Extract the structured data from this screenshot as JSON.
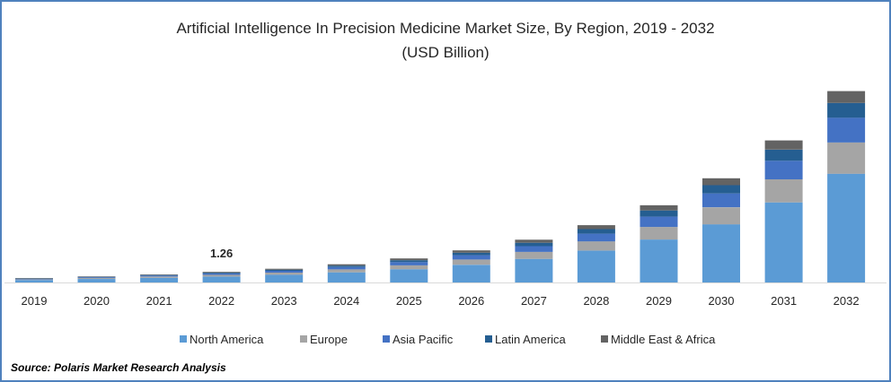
{
  "chart_data": {
    "type": "bar",
    "stacked": true,
    "title": "Artificial Intelligence In Precision Medicine Market Size, By Region, 2019 - 2032",
    "subtitle": "(USD Billion)",
    "categories": [
      "2019",
      "2020",
      "2021",
      "2022",
      "2023",
      "2024",
      "2025",
      "2026",
      "2027",
      "2028",
      "2029",
      "2030",
      "2031",
      "2032"
    ],
    "series": [
      {
        "name": "North America",
        "color": "#5b9bd5",
        "values": [
          0.3,
          0.42,
          0.55,
          0.7,
          0.91,
          1.2,
          1.57,
          2.1,
          2.8,
          3.78,
          5.1,
          6.9,
          9.5,
          12.9
        ]
      },
      {
        "name": "Europe",
        "color": "#a5a5a5",
        "values": [
          0.08,
          0.11,
          0.15,
          0.2,
          0.26,
          0.35,
          0.47,
          0.62,
          0.83,
          1.1,
          1.49,
          2.02,
          2.74,
          3.7
        ]
      },
      {
        "name": "Asia Pacific",
        "color": "#4472c4",
        "values": [
          0.06,
          0.09,
          0.12,
          0.16,
          0.21,
          0.28,
          0.38,
          0.51,
          0.68,
          0.91,
          1.22,
          1.64,
          2.2,
          2.95
        ]
      },
      {
        "name": "Latin America",
        "color": "#255e91",
        "values": [
          0.04,
          0.05,
          0.07,
          0.1,
          0.13,
          0.17,
          0.22,
          0.3,
          0.4,
          0.54,
          0.73,
          0.98,
          1.32,
          1.75
        ]
      },
      {
        "name": "Middle East & Africa",
        "color": "#636363",
        "values": [
          0.03,
          0.05,
          0.06,
          0.1,
          0.12,
          0.16,
          0.21,
          0.28,
          0.36,
          0.47,
          0.62,
          0.82,
          1.09,
          1.4
        ]
      }
    ],
    "data_labels": [
      {
        "category": "2022",
        "text": "1.26"
      }
    ],
    "ylim": [
      0,
      25
    ],
    "xlabel": "",
    "ylabel": "",
    "legend_position": "bottom",
    "grid": false
  },
  "source_text": "Source: Polaris  Market Research Analysis"
}
